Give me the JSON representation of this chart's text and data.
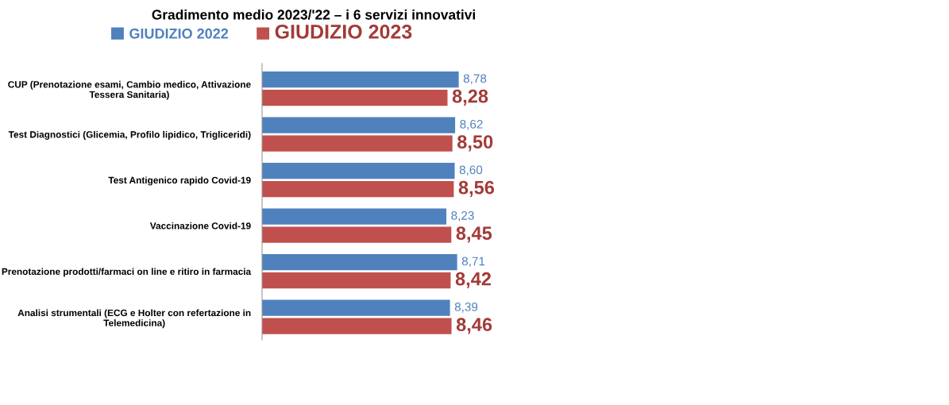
{
  "chart_data": {
    "type": "bar",
    "orientation": "horizontal",
    "title": "Gradimento medio 2023/'22 – i 6 servizi innovativi",
    "categories": [
      "CUP (Prenotazione esami, Cambio medico, Attivazione\nTessera Sanitaria)",
      "Test Diagnostici (Glicemia, Profilo lipidico, Trigliceridi)",
      "Test Antigenico rapido Covid-19",
      "Vaccinazione Covid-19",
      "Prenotazione prodotti/farmaci on line e ritiro in farmacia",
      "Analisi strumentali (ECG e Holter con refertazione in\nTelemedicina)"
    ],
    "series": [
      {
        "name": "GIUDIZIO 2022",
        "color": "#4f81bd",
        "values": [
          8.78,
          8.62,
          8.6,
          8.23,
          8.71,
          8.39
        ],
        "value_labels": [
          "8,78",
          "8,62",
          "8,60",
          "8,23",
          "8,71",
          "8,39"
        ]
      },
      {
        "name": "GIUDIZIO 2023",
        "color": "#c0504d",
        "values": [
          8.28,
          8.5,
          8.56,
          8.45,
          8.42,
          8.46
        ],
        "value_labels": [
          "8,28",
          "8,50",
          "8,56",
          "8,45",
          "8,42",
          "8,46"
        ]
      }
    ],
    "tick_labels": "y",
    "grid": false,
    "legend": "top"
  }
}
